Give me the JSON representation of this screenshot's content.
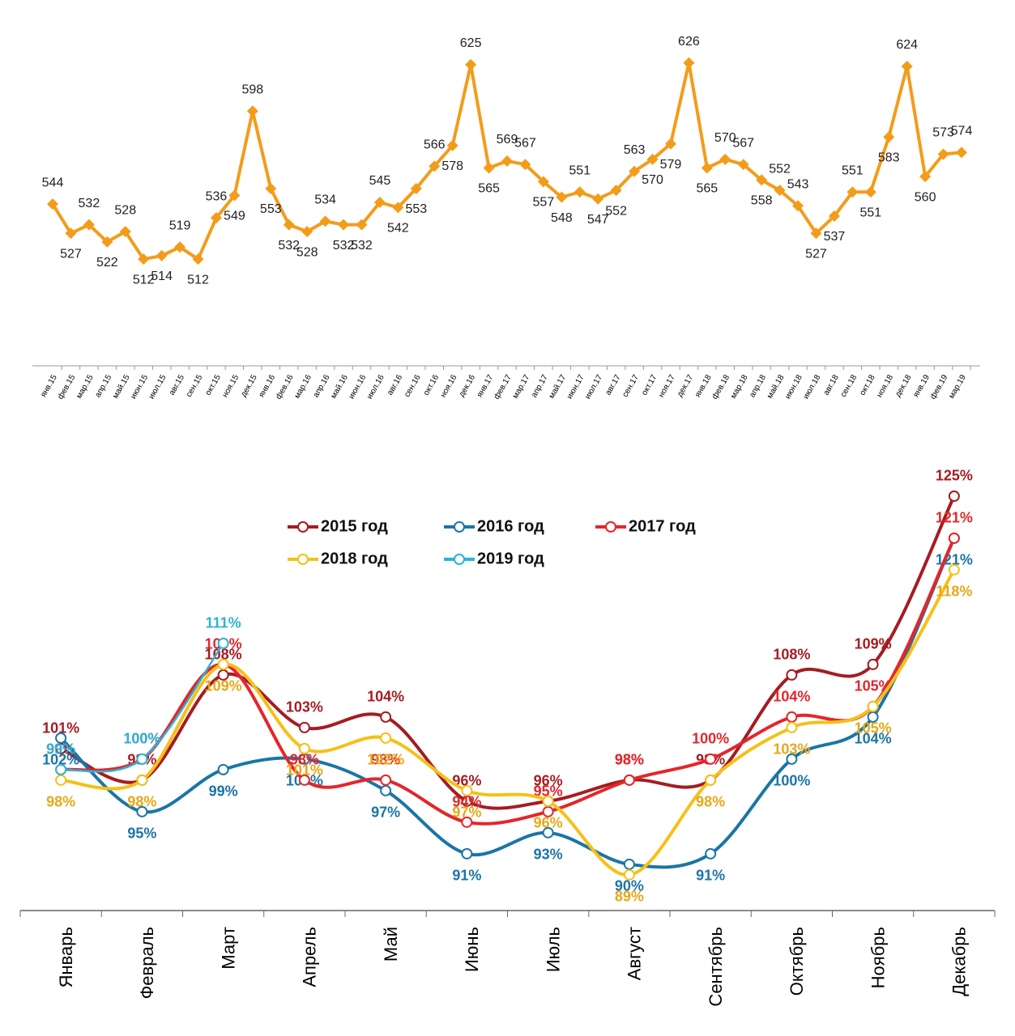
{
  "chart_data": [
    {
      "type": "line",
      "categories": [
        "янв.15",
        "фев.15",
        "мар.15",
        "апр.15",
        "май.15",
        "июн.15",
        "июл.15",
        "авг.15",
        "сен.15",
        "окт.15",
        "ноя.15",
        "дек.15",
        "янв.16",
        "фев.16",
        "мар.16",
        "апр.16",
        "май.16",
        "июн.16",
        "июл.16",
        "авг.16",
        "сен.16",
        "окт.16",
        "ноя.16",
        "дек.16",
        "янв.17",
        "фев.17",
        "мар.17",
        "апр.17",
        "май.17",
        "июн.17",
        "июл.17",
        "авг.17",
        "сен.17",
        "окт.17",
        "ноя.17",
        "дек.17",
        "янв.18",
        "фев.18",
        "мар.18",
        "апр.18",
        "май.18",
        "июн.18",
        "июл.18",
        "авг.18",
        "сен.18",
        "окт.18",
        "ноя.18",
        "дек.18",
        "янв.19",
        "фев.19",
        "мар.19"
      ],
      "values": [
        544,
        527,
        532,
        522,
        528,
        512,
        514,
        519,
        512,
        536,
        549,
        598,
        553,
        532,
        528,
        534,
        532,
        532,
        545,
        542,
        553,
        566,
        578,
        625,
        565,
        569,
        567,
        557,
        548,
        551,
        547,
        552,
        563,
        570,
        579,
        626,
        565,
        570,
        567,
        558,
        552,
        543,
        527,
        537,
        551,
        551,
        583,
        624,
        560,
        573,
        574
      ],
      "color": "#f39c1a",
      "ylim": [
        450,
        640
      ]
    },
    {
      "type": "line",
      "categories": [
        "Январь",
        "Февраль",
        "Март",
        "Апрель",
        "Май",
        "Июнь",
        "Июль",
        "Август",
        "Сентябрь",
        "Октябрь",
        "Ноябрь",
        "Декабрь"
      ],
      "ylim": [
        85.6,
        127
      ],
      "series": [
        {
          "name": "2015 год",
          "color": "#a51c21",
          "values": [
            101,
            98,
            108,
            103,
            104,
            96,
            96,
            98,
            98,
            108,
            109,
            125
          ],
          "value_labels": [
            "101%",
            "98%",
            "108%",
            "103%",
            "104%",
            "96%",
            "96%",
            "98%",
            "98%",
            "108%",
            "109%",
            "125%"
          ]
        },
        {
          "name": "2016 год",
          "color": "#1b75a6",
          "values": [
            102,
            95,
            99,
            100,
            97,
            91,
            93,
            90,
            91,
            100,
            104,
            121
          ],
          "value_labels": [
            "102%",
            "95%",
            "99%",
            "100%",
            "97%",
            "91%",
            "93%",
            "90%",
            "91%",
            "100%",
            "104%",
            "121%"
          ]
        },
        {
          "name": "2017 год",
          "color": "#e4262b",
          "values": [
            99,
            100,
            109,
            98,
            98,
            94,
            95,
            98,
            100,
            104,
            105,
            121
          ],
          "value_labels": [
            "99%",
            "100%",
            "109%",
            "98%",
            "98%",
            "94%",
            "95%",
            "98%",
            "100%",
            "104%",
            "105%",
            "121%"
          ]
        },
        {
          "name": "2018 год",
          "color": "#f5c018",
          "values": [
            98,
            98,
            109,
            101,
            102,
            97,
            96,
            89,
            98,
            103,
            105,
            118
          ],
          "value_labels": [
            "98%",
            "98%",
            "109%",
            "101%",
            "102%",
            "97%",
            "96%",
            "89%",
            "98%",
            "103%",
            "105%",
            "118%"
          ]
        },
        {
          "name": "2019 год",
          "color": "#2bb4d6",
          "values": [
            99,
            100,
            111,
            null,
            null,
            null,
            null,
            null,
            null,
            null,
            null,
            null
          ],
          "value_labels": [
            "99%",
            "100%",
            "111%",
            null,
            null,
            null,
            null,
            null,
            null,
            null,
            null,
            null
          ]
        }
      ]
    }
  ]
}
